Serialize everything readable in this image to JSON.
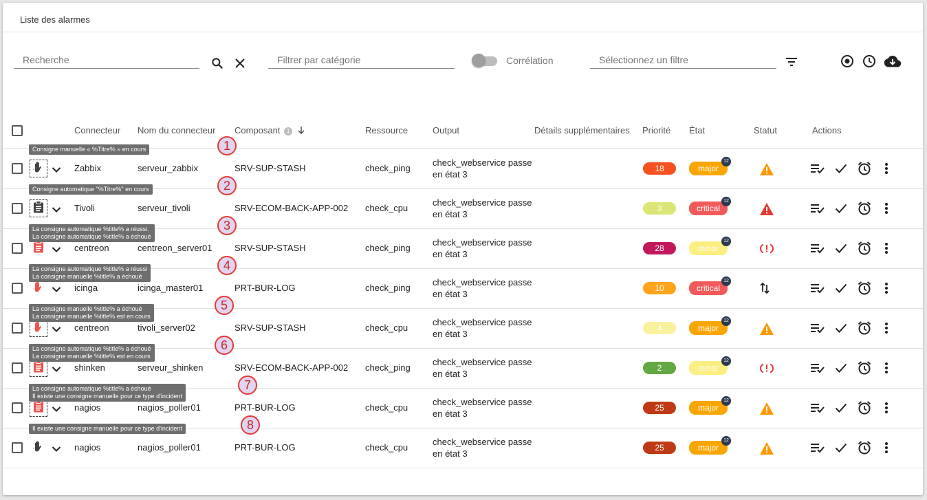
{
  "card_title": "Liste des alarmes",
  "search": {
    "placeholder": "Recherche",
    "value": ""
  },
  "category_filter": {
    "placeholder": "Filtrer par catégorie"
  },
  "correlation": {
    "label": "Corrélation",
    "enabled": false
  },
  "saved_filter": {
    "placeholder": "Sélectionnez un filtre"
  },
  "toolbar_icons": [
    "search-icon",
    "close-icon",
    "filter-list-icon",
    "record-icon",
    "clock-icon",
    "cloud-download-icon"
  ],
  "columns": {
    "connector": "Connecteur",
    "connector_name": "Nom du connecteur",
    "component": "Composant",
    "component_sort_index": "1",
    "resource": "Ressource",
    "output": "Output",
    "extra": "Détails supplémentaires",
    "priority": "Priorité",
    "state": "État",
    "status": "Statut",
    "actions": "Actions"
  },
  "colors": {
    "red": "#e53935",
    "orange": "#ff9800",
    "yellow": "#ffeb3b",
    "state_major": "#f9a603",
    "state_critical": "#f25a5a",
    "state_minor": "#fcee81"
  },
  "rows": [
    {
      "marker": "1",
      "tooltip": [
        "Consigne manuelle « %Titre% » en cours"
      ],
      "instruction_icon": "hand-icon",
      "instruction_color": "#424242",
      "dashed": true,
      "connector": "Zabbix",
      "connector_name": "serveur_zabbix",
      "component": "SRV-SUP-STASH",
      "resource": "check_ping",
      "output": [
        "check_webservice passe",
        "en état 3"
      ],
      "priority": "18",
      "priority_color": "#f4511e",
      "state": "major",
      "state_color": "#f9a603",
      "state_count": "12",
      "status_icon": "warning-icon",
      "status_color": "#ff9800"
    },
    {
      "marker": "2",
      "tooltip": [
        "Consigne automatique \"%Titre%\" en cours"
      ],
      "instruction_icon": "clipboard-icon",
      "instruction_color": "#424242",
      "dashed": true,
      "connector": "Tivoli",
      "connector_name": "serveur_tivoli",
      "component": "SRV-ECOM-BACK-APP-002",
      "resource": "check_cpu",
      "output": [
        "check_webservice passe",
        "en état 3"
      ],
      "priority": "3",
      "priority_color": "#dbe677",
      "state": "critical",
      "state_color": "#f25a5a",
      "state_count": "12",
      "status_icon": "warning-icon",
      "status_color": "#e53935"
    },
    {
      "marker": "3",
      "tooltip": [
        "La consigne automatique %title% a réussi.",
        "La consigne automatique %title% a échoué"
      ],
      "instruction_icon": "clipboard-icon",
      "instruction_color": "#ef5350",
      "dashed": false,
      "connector": "centreon",
      "connector_name": "centreon_server01",
      "component": "SRV-SUP-STASH",
      "resource": "check_ping",
      "output": [
        "check_webservice passe",
        "en état 3"
      ],
      "priority": "28",
      "priority_color": "#c2185b",
      "state": "minor",
      "state_color": "#fcee81",
      "state_count": "12",
      "status_icon": "flapping-icon",
      "status_color": "#e53935"
    },
    {
      "marker": "4",
      "tooltip": [
        "La consigne automatique %title% a réussi",
        "La consigne manuelle %title% a échoué"
      ],
      "instruction_icon": "hand-icon",
      "instruction_color": "#ef5350",
      "dashed": false,
      "connector": "icinga",
      "connector_name": "icinga_master01",
      "component": "PRT-BUR-LOG",
      "resource": "check_ping",
      "output": [
        "check_webservice passe",
        "en état 3"
      ],
      "priority": "10",
      "priority_color": "#ffa41b",
      "state": "critical",
      "state_color": "#f25a5a",
      "state_count": "12",
      "status_icon": "arrows-up-down-icon",
      "status_color": "#212121"
    },
    {
      "marker": "5",
      "tooltip": [
        "La consigne manuelle %title% a échoué",
        "La consigne manuelle %title% est en cours"
      ],
      "instruction_icon": "hand-icon",
      "instruction_color": "#ef5350",
      "dashed": true,
      "connector": "centreon",
      "connector_name": "tivoli_server02",
      "component": "SRV-SUP-STASH",
      "resource": "check_cpu",
      "output": [
        "check_webservice passe",
        "en état 3"
      ],
      "priority": "4",
      "priority_color": "#fbf09c",
      "state": "major",
      "state_color": "#f9a603",
      "state_count": "12",
      "status_icon": "warning-icon",
      "status_color": "#ff9800"
    },
    {
      "marker": "6",
      "tooltip": [
        "La consigne automatique %title% a échoué",
        "La consigne manuelle %title% est en cours"
      ],
      "instruction_icon": "clipboard-icon",
      "instruction_color": "#ef5350",
      "dashed": true,
      "connector": "shinken",
      "connector_name": "serveur_shinken",
      "component": "SRV-ECOM-BACK-APP-002",
      "resource": "check_ping",
      "output": [
        "check_webservice passe",
        "en état 3"
      ],
      "priority": "2",
      "priority_color": "#64a844",
      "state": "minor",
      "state_color": "#fcee81",
      "state_count": "12",
      "status_icon": "flapping-icon",
      "status_color": "#e53935"
    },
    {
      "marker": "7",
      "tooltip": [
        "La consigne automatique %title% a échoué",
        "Il existe une consigne manuelle pour ce type d'incident"
      ],
      "instruction_icon": "clipboard-icon",
      "instruction_color": "#ef5350",
      "dashed": true,
      "connector": "nagios",
      "connector_name": "nagios_poller01",
      "component": "PRT-BUR-LOG",
      "resource": "check_cpu",
      "output": [
        "check_webservice passe",
        "en état 3"
      ],
      "priority": "25",
      "priority_color": "#bf3a14",
      "state": "major",
      "state_color": "#f9a603",
      "state_count": "12",
      "status_icon": "warning-icon",
      "status_color": "#ff9800"
    },
    {
      "marker": "8",
      "tooltip": [
        "Il existe une consigne manuelle pour ce type d'incident"
      ],
      "instruction_icon": "hand-icon",
      "instruction_color": "#424242",
      "dashed": false,
      "connector": "nagios",
      "connector_name": "nagios_poller01",
      "component": "PRT-BUR-LOG",
      "resource": "check_cpu",
      "output": [
        "check_webservice passe",
        "en état 3"
      ],
      "priority": "25",
      "priority_color": "#bf3a14",
      "state": "major",
      "state_color": "#f9a603",
      "state_count": "12",
      "status_icon": "warning-icon",
      "status_color": "#ff9800"
    }
  ],
  "row_actions": [
    "playlist-check-icon",
    "check-icon",
    "snooze-alarm-icon",
    "more-vertical-icon"
  ]
}
